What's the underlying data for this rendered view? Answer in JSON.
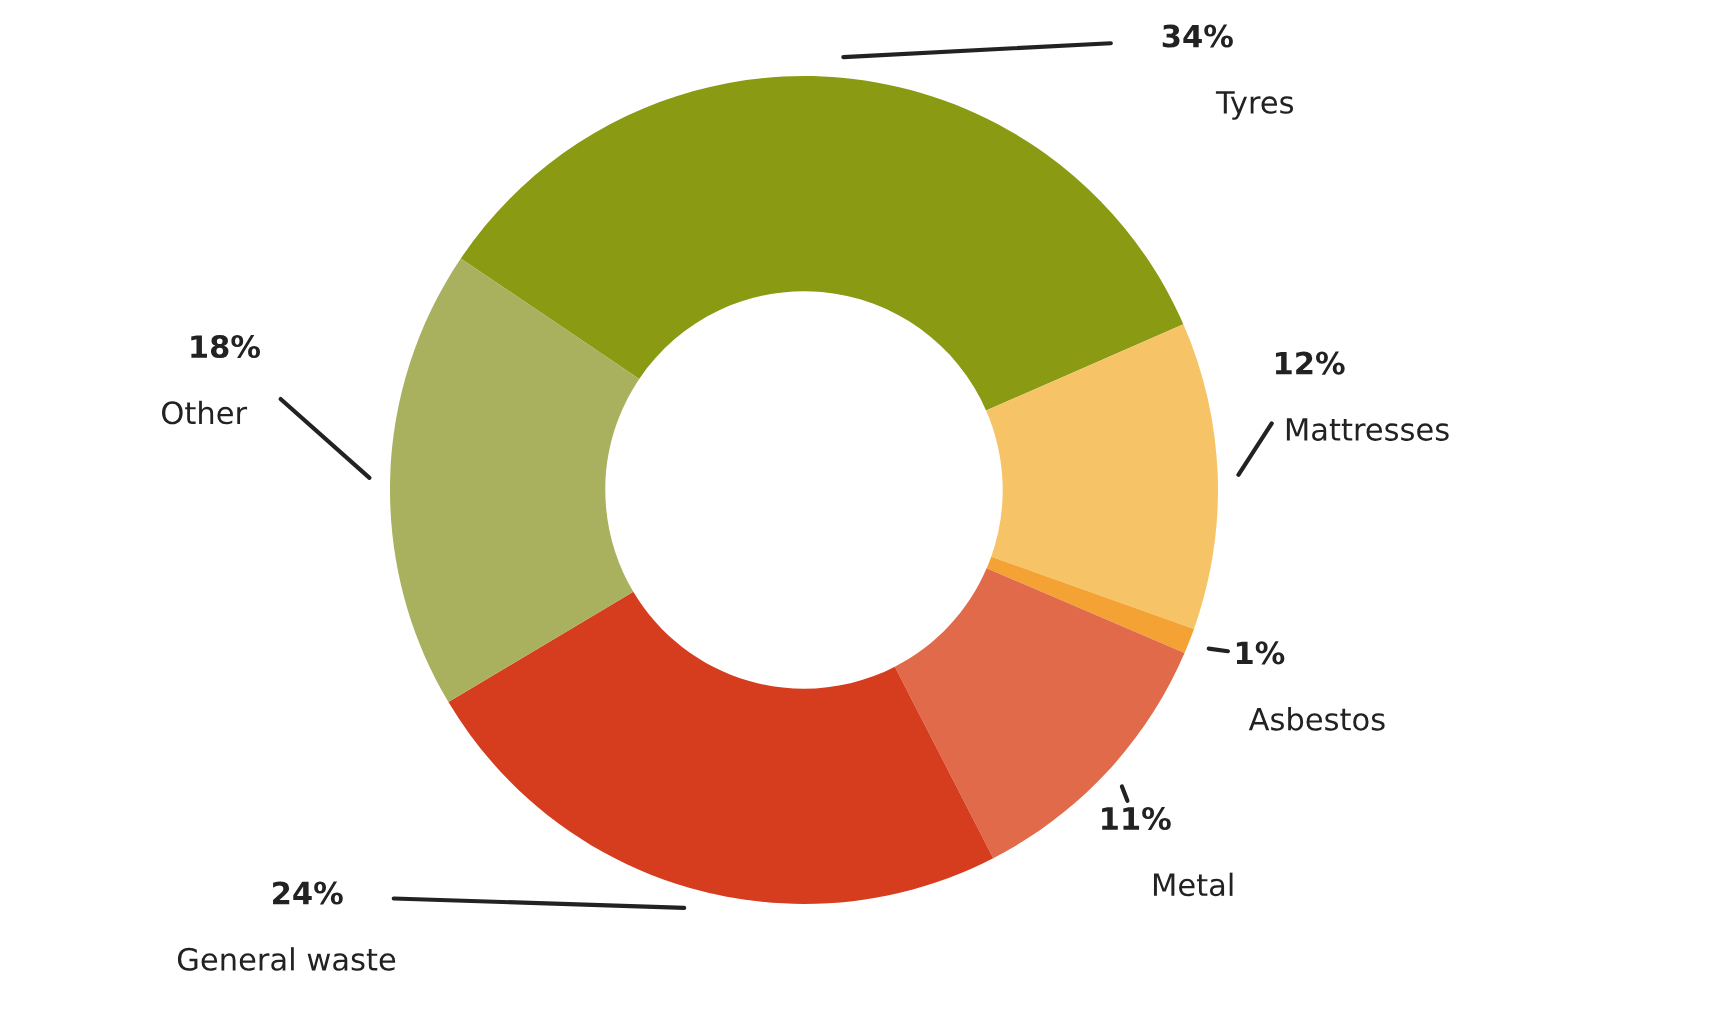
{
  "chart_data": {
    "type": "donut",
    "categories": [
      "Tyres",
      "Mattresses",
      "Asbestos",
      "Metal",
      "General waste",
      "Other"
    ],
    "values": [
      34,
      12,
      1,
      11,
      24,
      18
    ],
    "colors": [
      "#8a9a12",
      "#f6c467",
      "#f3a233",
      "#e06a4a",
      "#d63c1e",
      "#a9b05e"
    ],
    "value_labels": [
      "34%",
      "12%",
      "1%",
      "11%",
      "24%",
      "18%"
    ],
    "legend": false
  }
}
